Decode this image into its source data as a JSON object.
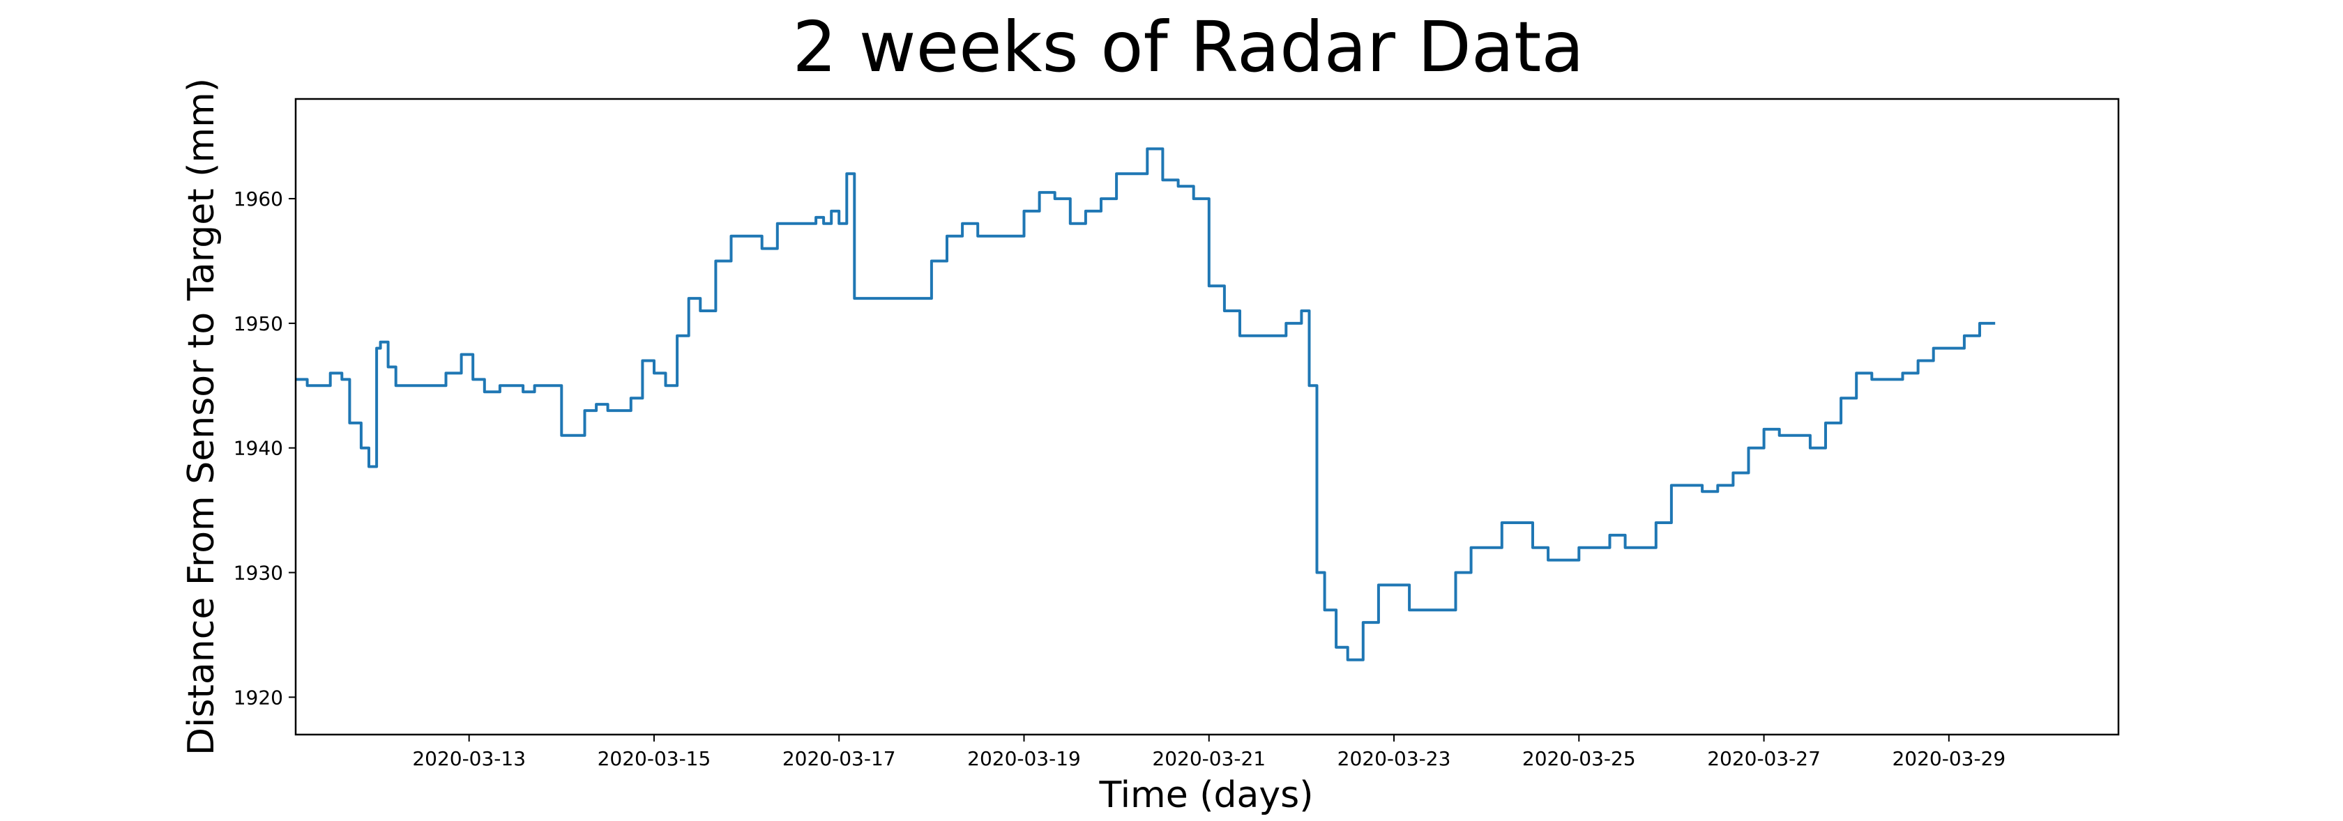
{
  "chart_data": {
    "type": "line",
    "title": "2 weeks of Radar Data",
    "xlabel": "Time (days)",
    "ylabel": "Distance From Sensor to Target (mm)",
    "x_type": "date",
    "xlim": [
      "2020-03-11 03:00",
      "2020-03-30 20:00"
    ],
    "ylim": [
      1917,
      1968
    ],
    "x_ticks": [
      "2020-03-13",
      "2020-03-15",
      "2020-03-17",
      "2020-03-19",
      "2020-03-21",
      "2020-03-23",
      "2020-03-25",
      "2020-03-27",
      "2020-03-29"
    ],
    "y_ticks": [
      1920,
      1930,
      1940,
      1950,
      1960
    ],
    "grid": false,
    "legend": "none",
    "series": [
      {
        "color": "#1f77b4",
        "x": [
          "2020-03-11 03:00",
          "2020-03-11 06:00",
          "2020-03-11 09:00",
          "2020-03-11 12:00",
          "2020-03-11 15:00",
          "2020-03-11 17:00",
          "2020-03-11 20:00",
          "2020-03-11 22:00",
          "2020-03-12 00:00",
          "2020-03-12 01:00",
          "2020-03-12 03:00",
          "2020-03-12 05:00",
          "2020-03-12 07:00",
          "2020-03-12 09:00",
          "2020-03-12 12:00",
          "2020-03-12 15:00",
          "2020-03-12 18:00",
          "2020-03-12 22:00",
          "2020-03-13 01:00",
          "2020-03-13 04:00",
          "2020-03-13 08:00",
          "2020-03-13 11:00",
          "2020-03-13 14:00",
          "2020-03-13 17:00",
          "2020-03-13 20:00",
          "2020-03-14 00:00",
          "2020-03-14 03:00",
          "2020-03-14 06:00",
          "2020-03-14 09:00",
          "2020-03-14 12:00",
          "2020-03-14 15:00",
          "2020-03-14 18:00",
          "2020-03-14 21:00",
          "2020-03-15 00:00",
          "2020-03-15 03:00",
          "2020-03-15 06:00",
          "2020-03-15 09:00",
          "2020-03-15 12:00",
          "2020-03-15 16:00",
          "2020-03-15 20:00",
          "2020-03-16 00:00",
          "2020-03-16 04:00",
          "2020-03-16 08:00",
          "2020-03-16 12:00",
          "2020-03-16 16:00",
          "2020-03-16 18:00",
          "2020-03-16 20:00",
          "2020-03-16 22:00",
          "2020-03-17 00:00",
          "2020-03-17 02:00",
          "2020-03-17 04:00",
          "2020-03-17 08:00",
          "2020-03-17 14:00",
          "2020-03-17 20:00",
          "2020-03-18 00:00",
          "2020-03-18 04:00",
          "2020-03-18 08:00",
          "2020-03-18 12:00",
          "2020-03-18 18:00",
          "2020-03-19 00:00",
          "2020-03-19 04:00",
          "2020-03-19 08:00",
          "2020-03-19 12:00",
          "2020-03-19 16:00",
          "2020-03-19 20:00",
          "2020-03-20 00:00",
          "2020-03-20 04:00",
          "2020-03-20 08:00",
          "2020-03-20 12:00",
          "2020-03-20 16:00",
          "2020-03-20 20:00",
          "2020-03-21 00:00",
          "2020-03-21 04:00",
          "2020-03-21 08:00",
          "2020-03-21 12:00",
          "2020-03-21 16:00",
          "2020-03-21 20:00",
          "2020-03-22 00:00",
          "2020-03-22 02:00",
          "2020-03-22 04:00",
          "2020-03-22 06:00",
          "2020-03-22 09:00",
          "2020-03-22 12:00",
          "2020-03-22 16:00",
          "2020-03-22 20:00",
          "2020-03-23 00:00",
          "2020-03-23 04:00",
          "2020-03-23 08:00",
          "2020-03-23 12:00",
          "2020-03-23 16:00",
          "2020-03-23 20:00",
          "2020-03-24 00:00",
          "2020-03-24 04:00",
          "2020-03-24 08:00",
          "2020-03-24 12:00",
          "2020-03-24 16:00",
          "2020-03-24 20:00",
          "2020-03-25 00:00",
          "2020-03-25 04:00",
          "2020-03-25 08:00",
          "2020-03-25 12:00",
          "2020-03-25 16:00",
          "2020-03-25 20:00",
          "2020-03-26 00:00",
          "2020-03-26 04:00",
          "2020-03-26 08:00",
          "2020-03-26 12:00",
          "2020-03-26 16:00",
          "2020-03-26 20:00",
          "2020-03-27 00:00",
          "2020-03-27 04:00",
          "2020-03-27 08:00",
          "2020-03-27 12:00",
          "2020-03-27 16:00",
          "2020-03-27 20:00",
          "2020-03-28 00:00",
          "2020-03-28 04:00",
          "2020-03-28 08:00",
          "2020-03-28 12:00",
          "2020-03-28 16:00",
          "2020-03-28 20:00",
          "2020-03-29 00:00",
          "2020-03-29 04:00",
          "2020-03-29 08:00",
          "2020-03-29 12:00"
        ],
        "y": [
          1945.5,
          1945,
          1945,
          1946,
          1945.5,
          1942,
          1940,
          1938.5,
          1948,
          1948.5,
          1946.5,
          1945,
          1945,
          1945,
          1945,
          1945,
          1946,
          1947.5,
          1945.5,
          1944.5,
          1945,
          1945,
          1944.5,
          1945,
          1945,
          1941,
          1941,
          1943,
          1943.5,
          1943,
          1943,
          1944,
          1947,
          1946,
          1945,
          1949,
          1952,
          1951,
          1955,
          1957,
          1957,
          1956,
          1958,
          1958,
          1958,
          1958.5,
          1958,
          1959,
          1958,
          1962,
          1952,
          1952,
          1952,
          1952,
          1955,
          1957,
          1958,
          1957,
          1957,
          1959,
          1960.5,
          1960,
          1958,
          1959,
          1960,
          1962,
          1962,
          1964,
          1961.5,
          1961,
          1960,
          1953,
          1951,
          1949,
          1949,
          1949,
          1950,
          1951,
          1945,
          1930,
          1927,
          1924,
          1923,
          1926,
          1929,
          1929,
          1927,
          1927,
          1927,
          1930,
          1932,
          1932,
          1934,
          1934,
          1932,
          1931,
          1931,
          1932,
          1932,
          1933,
          1932,
          1932,
          1934,
          1937,
          1937,
          1936.5,
          1937,
          1938,
          1940,
          1941.5,
          1941,
          1941,
          1940,
          1942,
          1944,
          1946,
          1945.5,
          1945.5,
          1946,
          1947,
          1948,
          1948,
          1949,
          1950,
          1950
        ]
      }
    ]
  }
}
